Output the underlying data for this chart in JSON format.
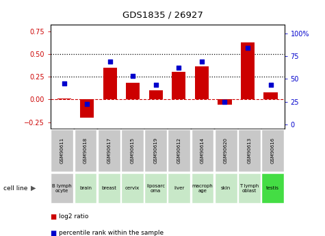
{
  "title": "GDS1835 / 26927",
  "gsm_labels": [
    "GSM90611",
    "GSM90618",
    "GSM90617",
    "GSM90615",
    "GSM90619",
    "GSM90612",
    "GSM90614",
    "GSM90620",
    "GSM90613",
    "GSM90616"
  ],
  "cell_line_labels": [
    "B lymph\nocyte",
    "brain",
    "breast",
    "cervix",
    "liposarc\noma",
    "liver",
    "macroph\nage",
    "skin",
    "T lymph\noblast",
    "testis"
  ],
  "cell_line_colors": [
    "#c8c8c8",
    "#c8e8c8",
    "#c8e8c8",
    "#c8e8c8",
    "#c8e8c8",
    "#c8e8c8",
    "#c8e8c8",
    "#c8e8c8",
    "#c8e8c8",
    "#44dd44"
  ],
  "log2_ratio": [
    0.01,
    -0.2,
    0.35,
    0.18,
    0.1,
    0.3,
    0.36,
    -0.06,
    0.63,
    0.08
  ],
  "percentile_rank": [
    45,
    23,
    69,
    53,
    44,
    62,
    69,
    25,
    84,
    44
  ],
  "ylim_left": [
    -0.32,
    0.82
  ],
  "ylim_right": [
    -4.27,
    109.3
  ],
  "yticks_left": [
    -0.25,
    0,
    0.25,
    0.5,
    0.75
  ],
  "yticks_right": [
    0,
    25,
    50,
    75,
    100
  ],
  "ytick_labels_right": [
    "0",
    "25",
    "50",
    "75",
    "100%"
  ],
  "bar_color": "#cc0000",
  "dot_color": "#0000cc",
  "hline_zero_color": "#cc0000",
  "dotline_color": "black",
  "legend_bar_label": "log2 ratio",
  "legend_dot_label": "percentile rank within the sample",
  "gsm_bg_color": "#c8c8c8"
}
